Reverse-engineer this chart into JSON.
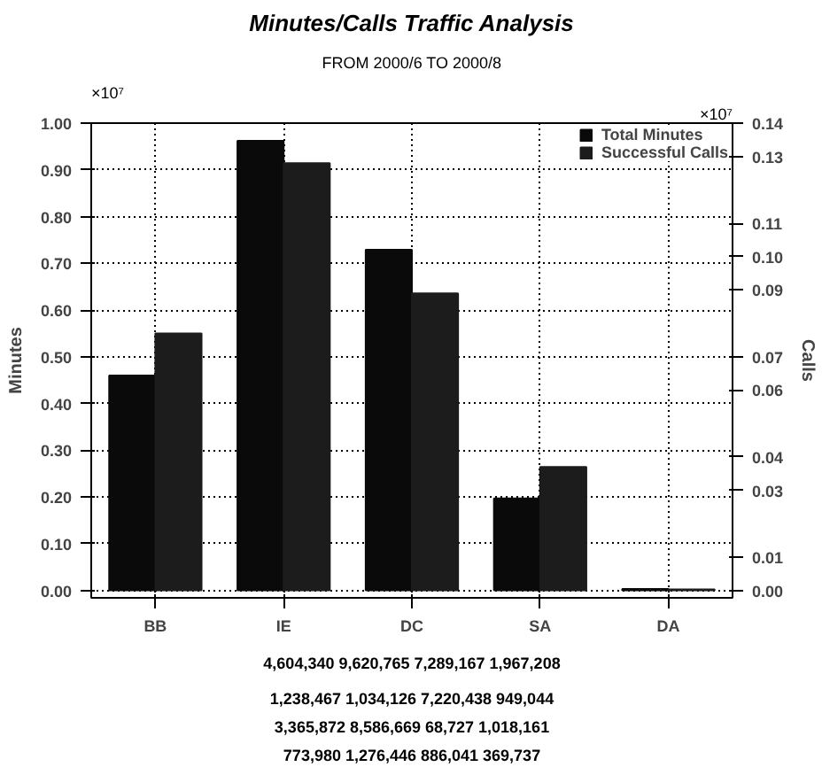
{
  "chart_data": {
    "type": "bar",
    "title": "Minutes/Calls Traffic Analysis",
    "subtitle": "FROM 2000/6 TO 2000/8",
    "ylabel": "Minutes",
    "y2label": "Calls",
    "categories": [
      "BB",
      "IE",
      "DC",
      "SA",
      "DA"
    ],
    "series": [
      {
        "name": "Total Minutes",
        "color": "#0a0a0a",
        "values": [
          0.46,
          0.962,
          0.729,
          0.197,
          0.003
        ]
      },
      {
        "name": "Successful Calls",
        "color": "#1c1c1c",
        "axis": "y2",
        "values": [
          0.077,
          0.128,
          0.089,
          0.037,
          0.0003
        ]
      }
    ],
    "ylim": [
      -0.016,
      1.0
    ],
    "yticks": [
      {
        "value": 0,
        "label": "0.00"
      },
      {
        "value": 0.1,
        "label": "0.10"
      },
      {
        "value": 0.2,
        "label": "0.20"
      },
      {
        "value": 0.3,
        "label": "0.30"
      },
      {
        "value": 0.4,
        "label": "0.40"
      },
      {
        "value": 0.5,
        "label": "0.50"
      },
      {
        "value": 0.6,
        "label": "0.60"
      },
      {
        "value": 0.7,
        "label": "0.70"
      },
      {
        "value": 0.8,
        "label": "0.80"
      },
      {
        "value": 0.9,
        "label": "0.90"
      },
      {
        "value": 1.0,
        "label": "1.00"
      }
    ],
    "y2lim": [
      -0.00224,
      0.14
    ],
    "y2ticks": [
      {
        "value": 0,
        "label": "0.00"
      },
      {
        "value": 0.01,
        "label": "0.01"
      },
      {
        "value": 0.03,
        "label": "0.03"
      },
      {
        "value": 0.04,
        "label": "0.04"
      },
      {
        "value": 0.06,
        "label": "0.06"
      },
      {
        "value": 0.07,
        "label": "0.07"
      },
      {
        "value": 0.09,
        "label": "0.09"
      },
      {
        "value": 0.1,
        "label": "0.10"
      },
      {
        "value": 0.11,
        "label": "0.11"
      },
      {
        "value": 0.13,
        "label": "0.13"
      },
      {
        "value": 0.14,
        "label": "0.14"
      }
    ],
    "annotations": [
      "×10⁷",
      "×10⁷",
      "4,604,340 9,620,765 7,289,167 1,967,208",
      "1,238,467 1,034,126 7,220,438 949,044",
      "3,365,872 8,586,669 68,727 1,018,161",
      "773,980 1,276,446 886,041 369,737"
    ],
    "grid": true,
    "line_style": "dotted",
    "legend": "top right"
  }
}
